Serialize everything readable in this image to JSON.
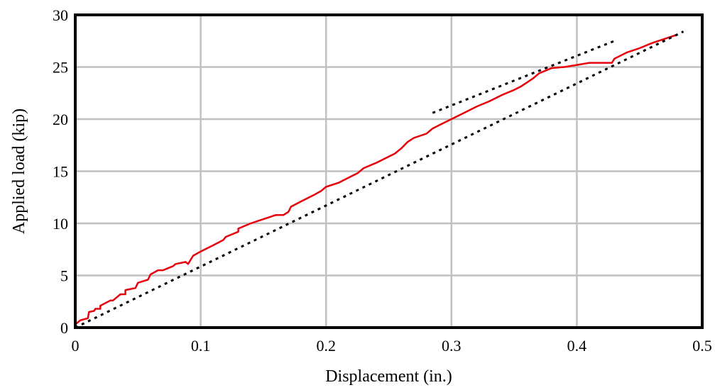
{
  "chart_data": {
    "type": "line",
    "title": "",
    "xlabel": "Displacement (in.)",
    "ylabel": "Applied load (kip)",
    "xlim": [
      0,
      0.5
    ],
    "ylim": [
      0,
      30
    ],
    "x_ticks": [
      0,
      0.1,
      0.2,
      0.3,
      0.4,
      0.5
    ],
    "x_tick_labels": [
      "0",
      "0.1",
      "0.2",
      "0.3",
      "0.4",
      "0.5"
    ],
    "y_ticks": [
      0,
      5,
      10,
      15,
      20,
      25,
      30
    ],
    "y_tick_labels": [
      "0",
      "5",
      "10",
      "15",
      "20",
      "25",
      "30"
    ],
    "grid": true,
    "series": [
      {
        "style": "solid",
        "color": "#e8000b",
        "x": [
          0,
          0.004,
          0.01,
          0.011,
          0.015,
          0.016,
          0.02,
          0.02,
          0.028,
          0.03,
          0.036,
          0.04,
          0.04,
          0.048,
          0.05,
          0.058,
          0.06,
          0.066,
          0.07,
          0.078,
          0.08,
          0.088,
          0.09,
          0.092,
          0.094,
          0.1,
          0.11,
          0.118,
          0.12,
          0.13,
          0.13,
          0.14,
          0.15,
          0.16,
          0.166,
          0.17,
          0.172,
          0.18,
          0.19,
          0.196,
          0.2,
          0.21,
          0.22,
          0.225,
          0.23,
          0.24,
          0.245,
          0.25,
          0.255,
          0.26,
          0.265,
          0.27,
          0.275,
          0.28,
          0.285,
          0.29,
          0.3,
          0.31,
          0.32,
          0.33,
          0.34,
          0.35,
          0.355,
          0.36,
          0.365,
          0.37,
          0.38,
          0.39,
          0.4,
          0.405,
          0.41,
          0.42,
          0.428,
          0.43,
          0.44,
          0.45,
          0.46,
          0.47,
          0.48
        ],
        "y": [
          0.3,
          0.7,
          0.9,
          1.5,
          1.6,
          1.8,
          1.8,
          2.1,
          2.6,
          2.6,
          3.2,
          3.2,
          3.6,
          3.8,
          4.3,
          4.6,
          5.1,
          5.5,
          5.5,
          5.9,
          6.1,
          6.3,
          6.1,
          6.5,
          6.9,
          7.3,
          7.9,
          8.4,
          8.7,
          9.2,
          9.5,
          10.0,
          10.4,
          10.8,
          10.8,
          11.1,
          11.6,
          12.1,
          12.7,
          13.1,
          13.5,
          13.9,
          14.5,
          14.8,
          15.3,
          15.8,
          16.1,
          16.4,
          16.7,
          17.2,
          17.8,
          18.2,
          18.4,
          18.6,
          19.1,
          19.4,
          20.0,
          20.6,
          21.2,
          21.7,
          22.3,
          22.8,
          23.1,
          23.5,
          23.9,
          24.4,
          24.9,
          25.0,
          25.2,
          25.3,
          25.4,
          25.4,
          25.4,
          25.8,
          26.4,
          26.8,
          27.3,
          27.7,
          28.1
        ]
      },
      {
        "style": "dotted",
        "color": "#000000",
        "x": [
          0,
          0.485
        ],
        "y": [
          0,
          28.4
        ]
      },
      {
        "style": "dotted",
        "color": "#000000",
        "x": [
          0.285,
          0.432
        ],
        "y": [
          20.6,
          27.6
        ]
      }
    ]
  }
}
